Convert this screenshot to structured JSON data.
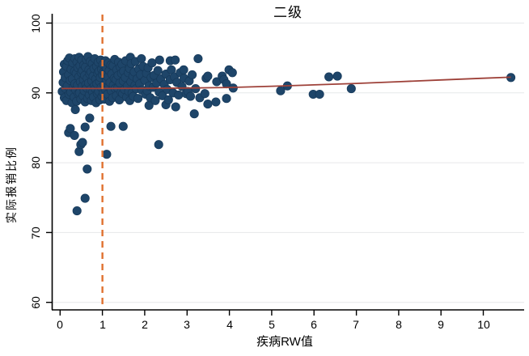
{
  "chart_data": {
    "type": "scatter",
    "title": "二级",
    "xlabel": "疾病RW值",
    "ylabel": "实际报销比例",
    "x_tick_labels": [
      "0",
      "1",
      "2",
      "3",
      "4",
      "5",
      "6",
      "7",
      "8",
      "9",
      "10"
    ],
    "y_tick_labels": [
      "100",
      "90",
      "80",
      "70",
      "60"
    ],
    "x_tick_values": [
      0,
      1,
      2,
      3,
      4,
      5,
      6,
      7,
      8,
      9,
      10
    ],
    "y_tick_values": [
      100,
      90,
      80,
      70,
      60
    ],
    "xlim": [
      -0.2,
      11.0
    ],
    "ylim": [
      59.5,
      101.3
    ],
    "grid": "horizontal-light",
    "legend": "none",
    "colors": {
      "marker": "#1e4569",
      "fit_line": "#9e4139",
      "reference_line": "#e0712f",
      "gridline": "#e6e8ea",
      "axis": "#000000",
      "background": "#ffffff"
    },
    "vline": {
      "x": 1,
      "style": "dashed",
      "color": "#e0712f"
    },
    "fit_line": {
      "color": "#9e4139",
      "points": [
        [
          0.03,
          90.62
        ],
        [
          1,
          90.62
        ],
        [
          2,
          90.65
        ],
        [
          3,
          90.7
        ],
        [
          4,
          90.78
        ],
        [
          5,
          90.95
        ],
        [
          6,
          91.15
        ],
        [
          7,
          91.35
        ],
        [
          8,
          91.6
        ],
        [
          9,
          91.85
        ],
        [
          10,
          92.1
        ],
        [
          10.65,
          92.25
        ]
      ]
    },
    "points": [
      [
        0.05,
        90.2
      ],
      [
        0.07,
        91.5
      ],
      [
        0.08,
        93.0
      ],
      [
        0.1,
        89.3
      ],
      [
        0.1,
        94.1
      ],
      [
        0.12,
        92.2
      ],
      [
        0.13,
        90.6
      ],
      [
        0.15,
        93.8
      ],
      [
        0.15,
        88.9
      ],
      [
        0.17,
        91.0
      ],
      [
        0.18,
        94.6
      ],
      [
        0.2,
        92.6
      ],
      [
        0.21,
        89.8
      ],
      [
        0.22,
        95.0
      ],
      [
        0.24,
        91.8
      ],
      [
        0.25,
        90.1
      ],
      [
        0.26,
        93.4
      ],
      [
        0.28,
        88.6
      ],
      [
        0.29,
        92.0
      ],
      [
        0.3,
        94.3
      ],
      [
        0.31,
        90.8
      ],
      [
        0.33,
        89.4
      ],
      [
        0.34,
        93.1
      ],
      [
        0.35,
        91.3
      ],
      [
        0.35,
        94.9
      ],
      [
        0.37,
        90.4
      ],
      [
        0.38,
        92.8
      ],
      [
        0.39,
        88.8
      ],
      [
        0.4,
        94.4
      ],
      [
        0.41,
        91.1
      ],
      [
        0.42,
        93.6
      ],
      [
        0.43,
        89.9
      ],
      [
        0.44,
        92.3
      ],
      [
        0.45,
        95.1
      ],
      [
        0.46,
        90.0
      ],
      [
        0.47,
        93.9
      ],
      [
        0.48,
        91.6
      ],
      [
        0.49,
        89.1
      ],
      [
        0.5,
        92.9
      ],
      [
        0.51,
        94.7
      ],
      [
        0.52,
        90.9
      ],
      [
        0.53,
        93.2
      ],
      [
        0.54,
        89.6
      ],
      [
        0.55,
        91.9
      ],
      [
        0.56,
        94.0
      ],
      [
        0.57,
        90.3
      ],
      [
        0.58,
        92.5
      ],
      [
        0.59,
        88.7
      ],
      [
        0.6,
        93.7
      ],
      [
        0.61,
        91.2
      ],
      [
        0.62,
        94.8
      ],
      [
        0.63,
        90.7
      ],
      [
        0.64,
        92.1
      ],
      [
        0.65,
        89.2
      ],
      [
        0.66,
        95.2
      ],
      [
        0.67,
        91.4
      ],
      [
        0.68,
        93.3
      ],
      [
        0.69,
        89.7
      ],
      [
        0.7,
        92.7
      ],
      [
        0.71,
        94.5
      ],
      [
        0.72,
        90.5
      ],
      [
        0.73,
        93.0
      ],
      [
        0.74,
        88.9
      ],
      [
        0.75,
        91.7
      ],
      [
        0.76,
        94.2
      ],
      [
        0.77,
        90.1
      ],
      [
        0.78,
        92.4
      ],
      [
        0.79,
        89.4
      ],
      [
        0.8,
        93.5
      ],
      [
        0.81,
        91.0
      ],
      [
        0.82,
        94.9
      ],
      [
        0.83,
        90.6
      ],
      [
        0.84,
        92.0
      ],
      [
        0.85,
        88.6
      ],
      [
        0.86,
        93.8
      ],
      [
        0.87,
        91.3
      ],
      [
        0.88,
        89.9
      ],
      [
        0.89,
        92.8
      ],
      [
        0.9,
        94.4
      ],
      [
        0.91,
        90.2
      ],
      [
        0.92,
        93.1
      ],
      [
        0.93,
        91.6
      ],
      [
        0.94,
        89.0
      ],
      [
        0.95,
        92.2
      ],
      [
        0.96,
        94.7
      ],
      [
        0.97,
        90.8
      ],
      [
        0.98,
        93.4
      ],
      [
        0.99,
        89.5
      ],
      [
        1.0,
        92.6
      ],
      [
        1.01,
        94.1
      ],
      [
        1.02,
        90.0
      ],
      [
        1.03,
        93.0
      ],
      [
        1.04,
        91.2
      ],
      [
        1.05,
        89.1
      ],
      [
        1.06,
        92.9
      ],
      [
        1.07,
        94.6
      ],
      [
        1.08,
        90.4
      ],
      [
        1.09,
        93.6
      ],
      [
        1.1,
        91.8
      ],
      [
        1.12,
        89.8
      ],
      [
        1.13,
        92.3
      ],
      [
        1.14,
        94.3
      ],
      [
        1.15,
        90.9
      ],
      [
        1.16,
        93.2
      ],
      [
        1.17,
        88.8
      ],
      [
        1.18,
        91.5
      ],
      [
        1.2,
        94.0
      ],
      [
        1.21,
        90.3
      ],
      [
        1.22,
        92.7
      ],
      [
        1.24,
        89.3
      ],
      [
        1.25,
        93.9
      ],
      [
        1.26,
        91.1
      ],
      [
        1.28,
        92.1
      ],
      [
        1.29,
        94.8
      ],
      [
        1.3,
        90.6
      ],
      [
        1.32,
        91.9
      ],
      [
        1.33,
        89.6
      ],
      [
        1.34,
        93.3
      ],
      [
        1.36,
        90.7
      ],
      [
        1.37,
        92.5
      ],
      [
        1.38,
        94.4
      ],
      [
        1.4,
        89.0
      ],
      [
        1.41,
        91.4
      ],
      [
        1.42,
        93.7
      ],
      [
        1.44,
        90.1
      ],
      [
        1.45,
        92.8
      ],
      [
        1.46,
        94.1
      ],
      [
        1.48,
        89.9
      ],
      [
        1.49,
        91.7
      ],
      [
        1.5,
        93.1
      ],
      [
        1.52,
        90.5
      ],
      [
        1.54,
        92.2
      ],
      [
        1.55,
        94.6
      ],
      [
        1.57,
        89.4
      ],
      [
        1.59,
        91.0
      ],
      [
        1.61,
        92.9
      ],
      [
        1.62,
        90.2
      ],
      [
        1.64,
        93.5
      ],
      [
        1.65,
        88.9
      ],
      [
        1.66,
        95.1
      ],
      [
        1.67,
        91.6
      ],
      [
        1.68,
        94.2
      ],
      [
        1.7,
        90.0
      ],
      [
        1.72,
        92.4
      ],
      [
        1.73,
        89.5
      ],
      [
        1.75,
        93.0
      ],
      [
        1.77,
        91.1
      ],
      [
        1.78,
        94.5
      ],
      [
        1.8,
        90.6
      ],
      [
        1.82,
        92.0
      ],
      [
        1.84,
        89.2
      ],
      [
        1.86,
        93.4
      ],
      [
        1.88,
        91.3
      ],
      [
        1.9,
        92.6
      ],
      [
        1.92,
        94.9
      ],
      [
        1.93,
        90.4
      ],
      [
        1.96,
        93.8
      ],
      [
        2.0,
        91.8
      ],
      [
        2.02,
        89.8
      ],
      [
        2.04,
        92.8
      ],
      [
        2.06,
        90.3
      ],
      [
        2.08,
        93.6
      ],
      [
        2.1,
        88.2
      ],
      [
        2.1,
        91.0
      ],
      [
        2.13,
        89.3
      ],
      [
        2.15,
        92.2
      ],
      [
        2.17,
        94.3
      ],
      [
        2.2,
        90.8
      ],
      [
        2.22,
        92.5
      ],
      [
        2.25,
        88.9
      ],
      [
        2.28,
        91.4
      ],
      [
        2.31,
        93.2
      ],
      [
        2.34,
        90.1
      ],
      [
        2.35,
        94.7
      ],
      [
        2.38,
        92.0
      ],
      [
        2.42,
        89.6
      ],
      [
        2.46,
        91.2
      ],
      [
        2.5,
        88.3
      ],
      [
        2.5,
        92.7
      ],
      [
        2.53,
        90.5
      ],
      [
        2.56,
        89.0
      ],
      [
        2.6,
        91.9
      ],
      [
        2.6,
        94.6
      ],
      [
        2.63,
        93.3
      ],
      [
        2.67,
        90.0
      ],
      [
        2.7,
        92.3
      ],
      [
        2.72,
        94.7
      ],
      [
        2.73,
        88.0
      ],
      [
        2.76,
        91.5
      ],
      [
        2.8,
        89.7
      ],
      [
        2.84,
        92.9
      ],
      [
        2.88,
        90.9
      ],
      [
        2.92,
        93.3
      ],
      [
        2.93,
        92.1
      ],
      [
        2.98,
        89.9
      ],
      [
        3.02,
        90.2
      ],
      [
        3.05,
        91.7
      ],
      [
        3.08,
        89.5
      ],
      [
        3.12,
        92.6
      ],
      [
        3.17,
        87.0
      ],
      [
        3.2,
        90.6
      ],
      [
        3.26,
        94.9
      ],
      [
        3.3,
        89.3
      ],
      [
        3.42,
        89.9
      ],
      [
        3.45,
        92.1
      ],
      [
        3.49,
        92.4
      ],
      [
        3.49,
        88.4
      ],
      [
        3.68,
        88.7
      ],
      [
        3.7,
        91.6
      ],
      [
        3.83,
        92.4
      ],
      [
        3.87,
        91.9
      ],
      [
        3.93,
        91.3
      ],
      [
        3.93,
        89.2
      ],
      [
        3.99,
        93.3
      ],
      [
        4.07,
        92.9
      ],
      [
        4.09,
        90.7
      ],
      [
        5.21,
        90.3
      ],
      [
        5.37,
        91.0
      ],
      [
        5.98,
        89.8
      ],
      [
        6.13,
        89.8
      ],
      [
        6.35,
        92.3
      ],
      [
        6.55,
        92.4
      ],
      [
        6.88,
        90.6
      ],
      [
        10.65,
        92.2
      ],
      [
        0.2,
        84.3
      ],
      [
        0.24,
        84.9
      ],
      [
        0.34,
        83.9
      ],
      [
        0.36,
        87.6
      ],
      [
        0.4,
        73.1
      ],
      [
        0.45,
        81.6
      ],
      [
        0.49,
        82.6
      ],
      [
        0.53,
        82.9
      ],
      [
        0.59,
        74.9
      ],
      [
        0.59,
        85.1
      ],
      [
        0.64,
        79.1
      ],
      [
        0.7,
        86.4
      ],
      [
        1.1,
        81.2
      ],
      [
        1.2,
        85.2
      ],
      [
        1.49,
        85.2
      ],
      [
        2.33,
        82.6
      ]
    ]
  }
}
